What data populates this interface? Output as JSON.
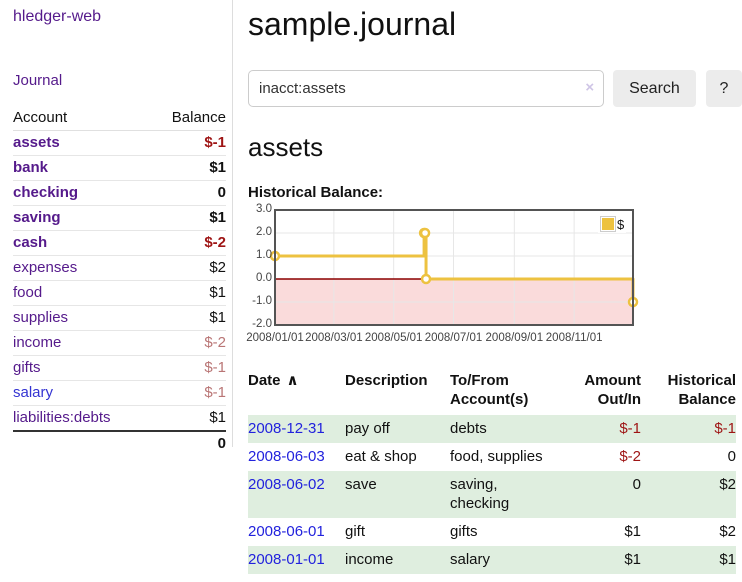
{
  "brand": "hledger-web",
  "sidebar": {
    "journal_label": "Journal",
    "account_header": "Account",
    "balance_header": "Balance",
    "accounts": [
      {
        "name": "assets",
        "balance": "$-1"
      },
      {
        "name": "bank",
        "balance": "$1"
      },
      {
        "name": "checking",
        "balance": "0"
      },
      {
        "name": "saving",
        "balance": "$1"
      },
      {
        "name": "cash",
        "balance": "$-2"
      },
      {
        "name": "expenses",
        "balance": "$2"
      },
      {
        "name": "food",
        "balance": "$1"
      },
      {
        "name": "supplies",
        "balance": "$1"
      },
      {
        "name": "income",
        "balance": "$-2"
      },
      {
        "name": "gifts",
        "balance": "$-1"
      },
      {
        "name": "salary",
        "balance": "$-1"
      },
      {
        "name": "liabilities:debts",
        "balance": "$1"
      }
    ],
    "total": "0"
  },
  "header": {
    "title": "sample.journal"
  },
  "search": {
    "value": "inacct:assets",
    "clear_icon": "×",
    "button_label": "Search",
    "help_label": "?"
  },
  "account_page": {
    "heading": "assets",
    "chart_title": "Historical Balance:"
  },
  "chart_data": {
    "type": "line",
    "step": true,
    "title": "Historical Balance",
    "series": [
      {
        "name": "$",
        "color": "#edc240",
        "points": [
          {
            "date": "2008-01-01",
            "value": 1
          },
          {
            "date": "2008-06-01",
            "value": 2
          },
          {
            "date": "2008-06-02",
            "value": 2
          },
          {
            "date": "2008-06-03",
            "value": 0
          },
          {
            "date": "2008-12-31",
            "value": -1
          }
        ]
      }
    ],
    "xlim": [
      "2008-01-01",
      "2008-12-31"
    ],
    "ylim": [
      -2,
      3
    ],
    "yticks": [
      "3.0",
      "2.0",
      "1.0",
      "0.0",
      "-1.0",
      "-2.0"
    ],
    "xticks": [
      "2008/01/01",
      "2008/03/01",
      "2008/05/01",
      "2008/07/01",
      "2008/09/01",
      "2008/11/01"
    ],
    "grid": true,
    "grid_color": "#e7e7e7",
    "border_color": "#545454",
    "zero_line_color": "#8b0000",
    "negative_fill": "#fadbdb",
    "legend": {
      "label": "$",
      "position": "top-right"
    }
  },
  "register": {
    "columns": [
      "Date",
      "Description",
      "To/From Account(s)",
      "Amount Out/In",
      "Historical Balance"
    ],
    "sort_icon": "∧",
    "rows": [
      {
        "date": "2008-12-31",
        "description": "pay off",
        "accounts": "debts",
        "amount": "$-1",
        "balance": "$-1"
      },
      {
        "date": "2008-06-03",
        "description": "eat & shop",
        "accounts": "food, supplies",
        "amount": "$-2",
        "balance": "0"
      },
      {
        "date": "2008-06-02",
        "description": "save",
        "accounts": "saving, checking",
        "amount": "0",
        "balance": "$2"
      },
      {
        "date": "2008-06-01",
        "description": "gift",
        "accounts": "gifts",
        "amount": "$1",
        "balance": "$2"
      },
      {
        "date": "2008-01-01",
        "description": "income",
        "accounts": "salary",
        "amount": "$1",
        "balance": "$1"
      }
    ]
  }
}
